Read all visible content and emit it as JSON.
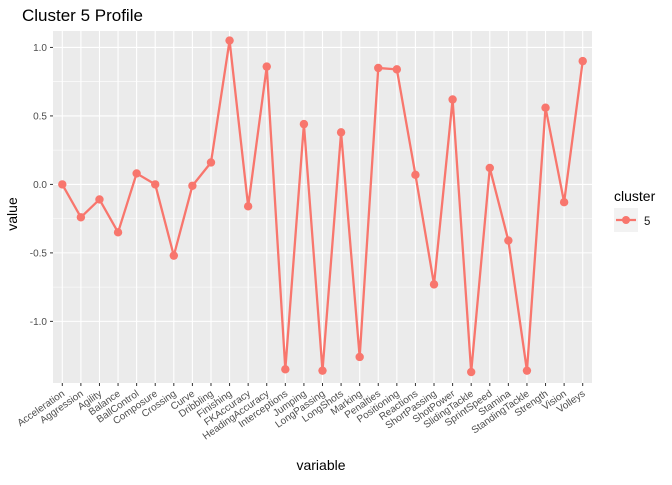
{
  "chart_data": {
    "type": "line",
    "title": "Cluster 5 Profile",
    "xlabel": "variable",
    "ylabel": "value",
    "categories": [
      "Acceleration",
      "Aggression",
      "Agility",
      "Balance",
      "BallControl",
      "Composure",
      "Crossing",
      "Curve",
      "Dribbling",
      "Finishing",
      "FKAccuracy",
      "HeadingAccuracy",
      "Interceptions",
      "Jumping",
      "LongPassing",
      "LongShots",
      "Marking",
      "Penalties",
      "Positioning",
      "Reactions",
      "ShortPassing",
      "ShotPower",
      "SlidingTackle",
      "SprintSpeed",
      "Stamina",
      "StandingTackle",
      "Strength",
      "Vision",
      "Volleys"
    ],
    "series": [
      {
        "name": "5",
        "color": "#F8766D",
        "values": [
          0.0,
          -0.24,
          -0.11,
          -0.35,
          0.08,
          0.0,
          -0.52,
          -0.01,
          0.16,
          1.05,
          -0.16,
          0.86,
          -1.35,
          0.44,
          -1.36,
          0.38,
          -1.26,
          0.85,
          0.84,
          0.07,
          -0.73,
          0.62,
          -1.37,
          0.12,
          -0.41,
          -1.36,
          0.56,
          -0.13,
          0.9
        ]
      }
    ],
    "yticks": [
      "-1.0",
      "-0.5",
      "0.0",
      "0.5",
      "1.0"
    ],
    "ytick_values": [
      -1.0,
      -0.5,
      0.0,
      0.5,
      1.0
    ],
    "ylim": [
      -1.45,
      1.12
    ],
    "legend": {
      "title": "cluster",
      "placement": "right",
      "entries": [
        "5"
      ]
    },
    "grid": true,
    "panel_background": "#EBEBEB",
    "grid_color": "#FFFFFF"
  }
}
